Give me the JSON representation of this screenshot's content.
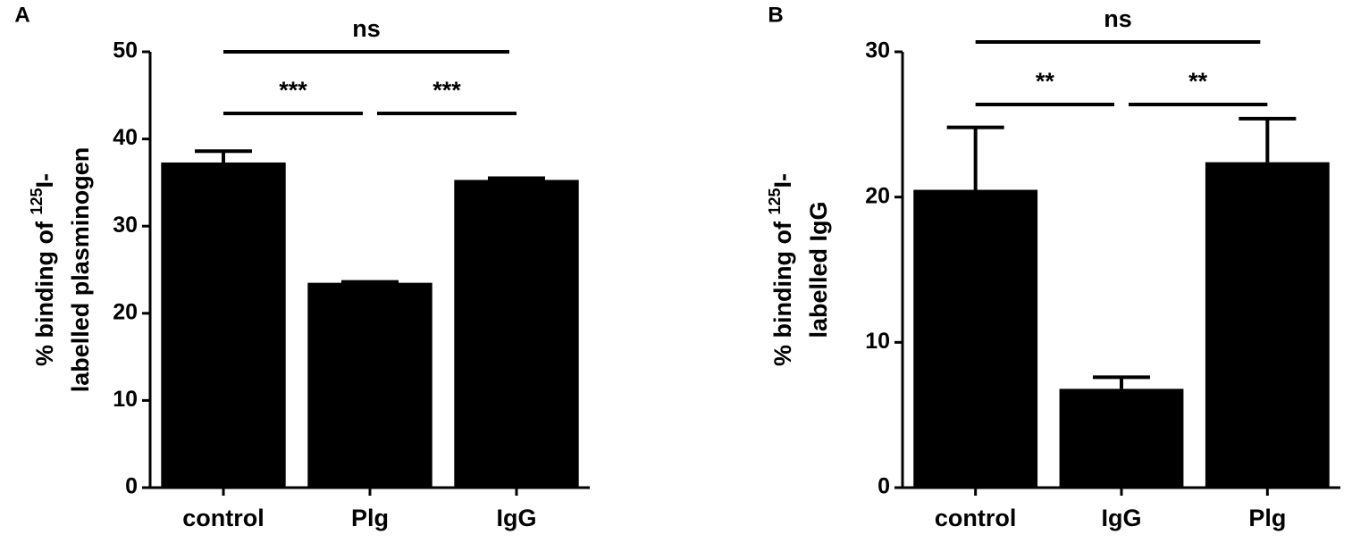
{
  "chart_data": [
    {
      "type": "bar",
      "panel": "A",
      "ylabel": {
        "prefix": "% binding of ",
        "sup": "125",
        "suffix": "I-",
        "line2": "labelled plasminogen"
      },
      "categories": [
        "control",
        "Plg",
        "IgG"
      ],
      "values": [
        37.3,
        23.5,
        35.3
      ],
      "errors": [
        1.3,
        0.1,
        0.2
      ],
      "color": "#000000",
      "ylim": [
        0,
        50
      ],
      "yticks": [
        0,
        10,
        20,
        30,
        40,
        50
      ],
      "annotations": [
        {
          "label": "ns",
          "from": 0,
          "to": 2
        },
        {
          "label": "***",
          "from": 0,
          "to": 1
        },
        {
          "label": "***",
          "from": 1,
          "to": 2
        }
      ]
    },
    {
      "type": "bar",
      "panel": "B",
      "ylabel": {
        "prefix": "% binding of ",
        "sup": "125",
        "suffix": "I-",
        "line2": "labelled IgG"
      },
      "categories": [
        "control",
        "IgG",
        "Plg"
      ],
      "values": [
        20.5,
        6.8,
        22.4
      ],
      "errors": [
        4.3,
        0.8,
        3.0
      ],
      "color": "#000000",
      "ylim": [
        0,
        30
      ],
      "yticks": [
        0,
        10,
        20,
        30
      ],
      "annotations": [
        {
          "label": "ns",
          "from": 0,
          "to": 2
        },
        {
          "label": "**",
          "from": 0,
          "to": 1
        },
        {
          "label": "**",
          "from": 1,
          "to": 2
        }
      ]
    }
  ]
}
